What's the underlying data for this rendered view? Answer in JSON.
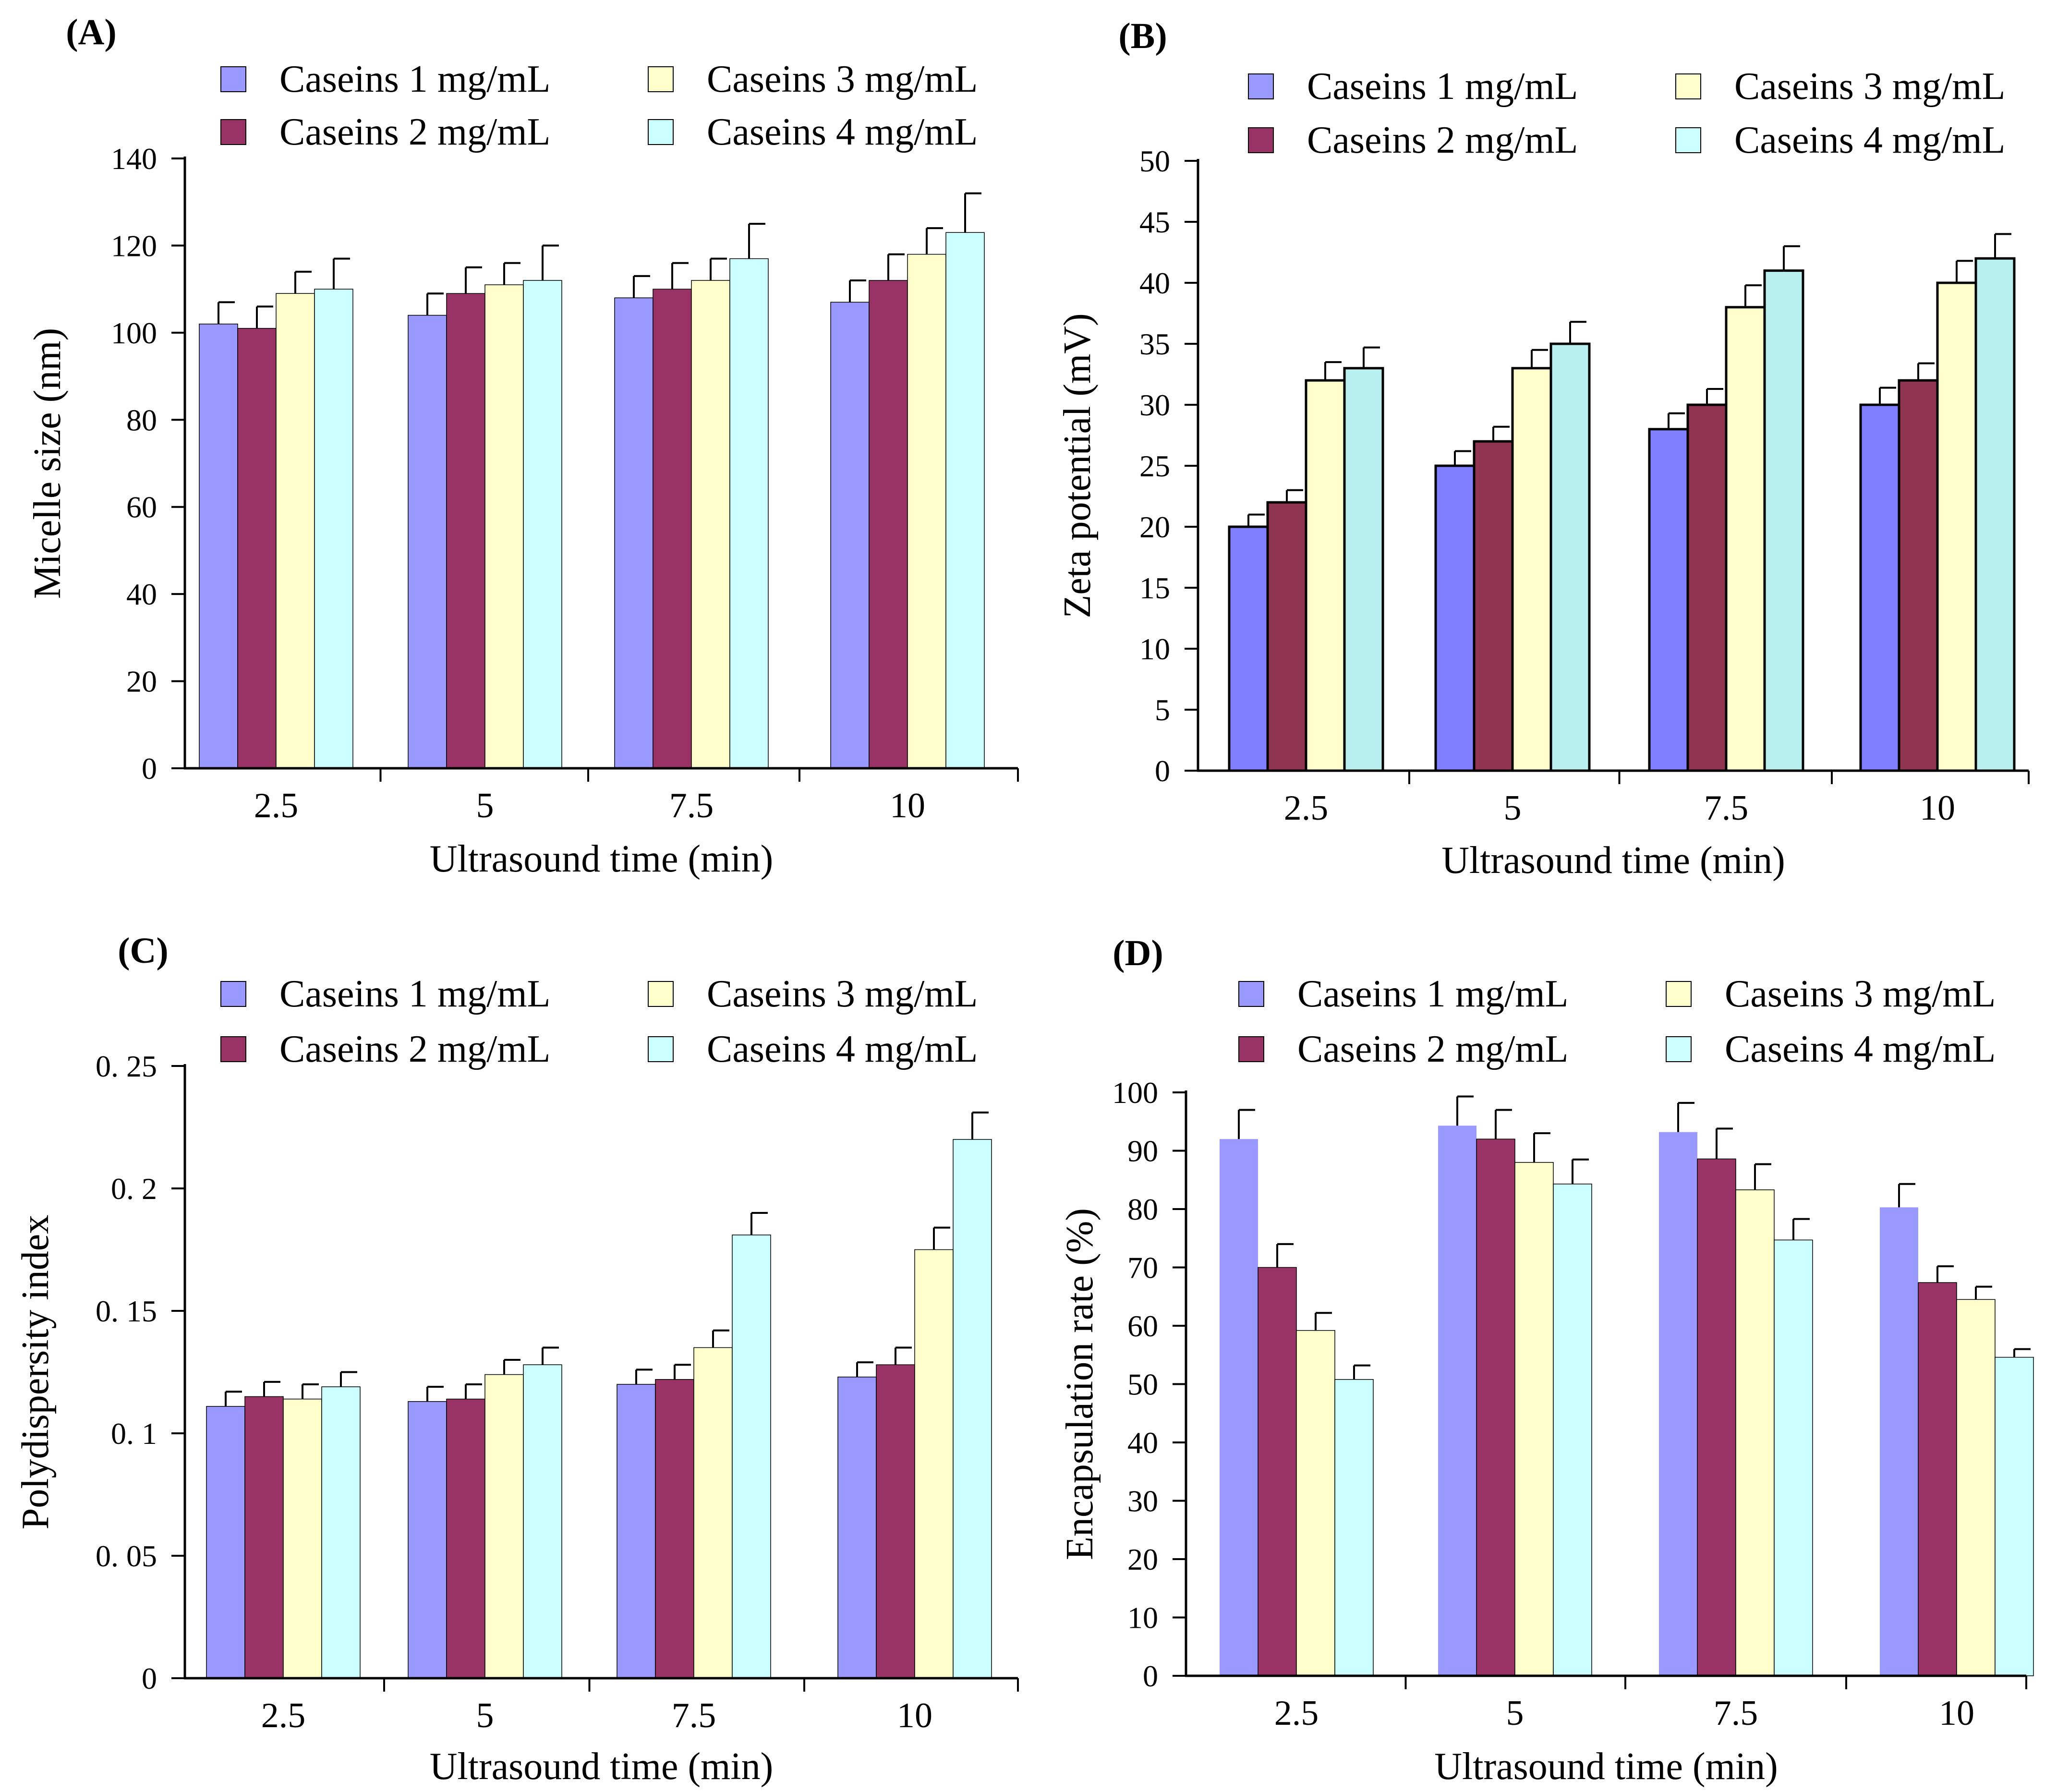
{
  "colors": {
    "Caseins 1 mg/mL": "#9999ff",
    "Caseins 2 mg/mL": "#993366",
    "Caseins 3 mg/mL": "#ffffcc",
    "Caseins 4 mg/mL": "#ccffff",
    "B_Caseins 1 mg/mL": "#7f7fff",
    "B_Caseins 2 mg/mL": "#8f3550",
    "B_Caseins 4 mg/mL": "#b8f0f0"
  },
  "chart_data": [
    {
      "id": "A",
      "type": "bar",
      "panel_label": "(A)",
      "xlabel": "Ultrasound time (min)",
      "ylabel": "Micelle size (nm)",
      "categories": [
        "2.5",
        "5",
        "7.5",
        "10"
      ],
      "ylim": [
        0,
        140
      ],
      "yticks": [
        0,
        20,
        40,
        60,
        80,
        100,
        120,
        140
      ],
      "ytick_labels": [
        "0",
        "20",
        "40",
        "60",
        "80",
        "100",
        "120",
        "140"
      ],
      "legend_position": "top",
      "series": [
        {
          "name": "Caseins 1 mg/mL",
          "values": [
            102,
            104,
            108,
            107
          ],
          "errors": [
            5,
            5,
            5,
            5
          ]
        },
        {
          "name": "Caseins 2 mg/mL",
          "values": [
            101,
            109,
            110,
            112
          ],
          "errors": [
            5,
            6,
            6,
            6
          ]
        },
        {
          "name": "Caseins 3 mg/mL",
          "values": [
            109,
            111,
            112,
            118
          ],
          "errors": [
            5,
            5,
            5,
            6
          ]
        },
        {
          "name": "Caseins 4 mg/mL",
          "values": [
            110,
            112,
            117,
            123
          ],
          "errors": [
            7,
            8,
            8,
            9
          ]
        }
      ]
    },
    {
      "id": "B",
      "type": "bar",
      "panel_label": "(B)",
      "xlabel": "Ultrasound time (min)",
      "ylabel": "Zeta potential (mV)",
      "categories": [
        "2.5",
        "5",
        "7.5",
        "10"
      ],
      "ylim": [
        0,
        50
      ],
      "yticks": [
        0,
        5,
        10,
        15,
        20,
        25,
        30,
        35,
        40,
        45,
        50
      ],
      "ytick_labels": [
        "0",
        "5",
        "10",
        "15",
        "20",
        "25",
        "30",
        "35",
        "40",
        "45",
        "50"
      ],
      "legend_position": "top",
      "series": [
        {
          "name": "Caseins 1 mg/mL",
          "values": [
            20,
            25,
            28,
            30
          ],
          "errors": [
            1,
            1.2,
            1.3,
            1.4
          ]
        },
        {
          "name": "Caseins 2 mg/mL",
          "values": [
            22,
            27,
            30,
            32
          ],
          "errors": [
            1,
            1.2,
            1.3,
            1.4
          ]
        },
        {
          "name": "Caseins 3 mg/mL",
          "values": [
            32,
            33,
            38,
            40
          ],
          "errors": [
            1.5,
            1.5,
            1.8,
            1.8
          ]
        },
        {
          "name": "Caseins 4 mg/mL",
          "values": [
            33,
            35,
            41,
            42
          ],
          "errors": [
            1.7,
            1.8,
            2,
            2
          ]
        }
      ]
    },
    {
      "id": "C",
      "type": "bar",
      "panel_label": "(C)",
      "xlabel": "Ultrasound time (min)",
      "ylabel": "Polydispersity index",
      "categories": [
        "2.5",
        "5",
        "7.5",
        "10"
      ],
      "ylim": [
        0,
        0.25
      ],
      "yticks": [
        0,
        0.05,
        0.1,
        0.15,
        0.2,
        0.25
      ],
      "ytick_labels": [
        "0",
        "0. 05",
        "0. 1",
        "0. 15",
        "0. 2",
        "0. 25"
      ],
      "legend_position": "top",
      "series": [
        {
          "name": "Caseins 1 mg/mL",
          "values": [
            0.111,
            0.113,
            0.12,
            0.123
          ],
          "errors": [
            0.006,
            0.006,
            0.006,
            0.006
          ]
        },
        {
          "name": "Caseins 2 mg/mL",
          "values": [
            0.115,
            0.114,
            0.122,
            0.128
          ],
          "errors": [
            0.006,
            0.006,
            0.006,
            0.007
          ]
        },
        {
          "name": "Caseins 3 mg/mL",
          "values": [
            0.114,
            0.124,
            0.135,
            0.175
          ],
          "errors": [
            0.006,
            0.006,
            0.007,
            0.009
          ]
        },
        {
          "name": "Caseins 4 mg/mL",
          "values": [
            0.119,
            0.128,
            0.181,
            0.22
          ],
          "errors": [
            0.006,
            0.007,
            0.009,
            0.011
          ]
        }
      ]
    },
    {
      "id": "D",
      "type": "bar",
      "panel_label": "(D)",
      "xlabel": "Ultrasound time (min)",
      "ylabel": "Encapsulation rate (%)",
      "categories": [
        "2.5",
        "5",
        "7.5",
        "10"
      ],
      "ylim": [
        0,
        100
      ],
      "yticks": [
        0,
        10,
        20,
        30,
        40,
        50,
        60,
        70,
        80,
        90,
        100
      ],
      "ytick_labels": [
        "0",
        "10",
        "20",
        "30",
        "40",
        "50",
        "60",
        "70",
        "80",
        "90",
        "100"
      ],
      "legend_position": "top",
      "series": [
        {
          "name": "Caseins 1 mg/mL",
          "values": [
            92,
            94.3,
            93.2,
            80.3
          ],
          "errors": [
            5,
            5,
            5,
            4
          ]
        },
        {
          "name": "Caseins 2 mg/mL",
          "values": [
            70,
            92,
            88.6,
            67.4
          ],
          "errors": [
            4,
            5,
            5.2,
            2.8
          ]
        },
        {
          "name": "Caseins 3 mg/mL",
          "values": [
            59.2,
            88,
            83.3,
            64.5
          ],
          "errors": [
            3,
            5,
            4.4,
            2.2
          ]
        },
        {
          "name": "Caseins 4 mg/mL",
          "values": [
            50.8,
            84.3,
            74.7,
            54.6
          ],
          "errors": [
            2.4,
            4.2,
            3.6,
            1.4
          ]
        }
      ]
    }
  ]
}
